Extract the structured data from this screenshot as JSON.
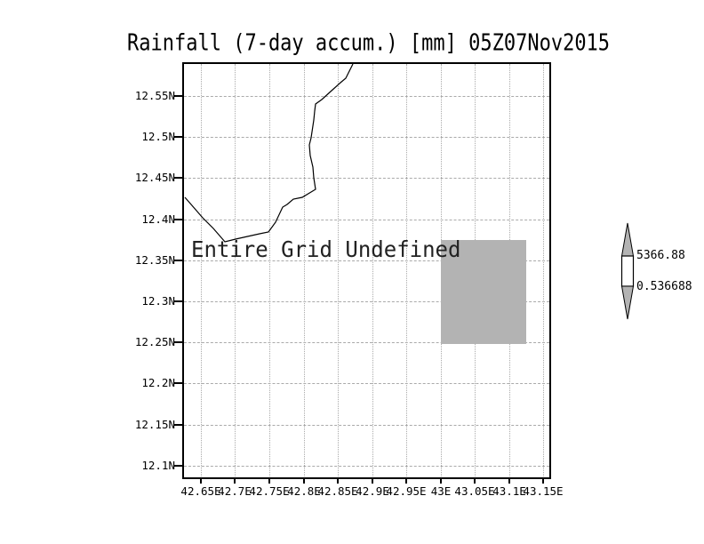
{
  "title": "Rainfall (7-day accum.) [mm] 05Z07Nov2015",
  "plot": {
    "status_text": "Entire Grid Undefined",
    "grid_color": "#aaaaaa",
    "frame_color": "#000000",
    "shaded_cell_color": "#b3b3b3",
    "coastline_color": "#000000"
  },
  "axes": {
    "y_tick_labels": [
      "12.55N",
      "12.5N",
      "12.45N",
      "12.4N",
      "12.35N",
      "12.3N",
      "12.25N",
      "12.2N",
      "12.15N",
      "12.1N"
    ],
    "x_tick_labels": [
      "42.65E",
      "42.7E",
      "42.75E",
      "42.8E",
      "42.85E",
      "42.9E",
      "42.95E",
      "43E",
      "43.05E",
      "43.1E",
      "43.15E"
    ]
  },
  "colorbar": {
    "max_label": "5366.88",
    "min_label": "0.536688",
    "arrow_color": "#b3b3b3",
    "box_color": "#ffffff"
  },
  "map": {
    "coastline_points": [
      [
        190,
        0
      ],
      [
        186,
        8
      ],
      [
        182,
        16
      ],
      [
        176,
        21
      ],
      [
        166,
        30
      ],
      [
        155,
        40
      ],
      [
        148,
        45
      ],
      [
        147,
        53
      ],
      [
        146,
        63
      ],
      [
        143,
        83
      ],
      [
        141,
        91
      ],
      [
        142,
        103
      ],
      [
        145,
        116
      ],
      [
        146,
        128
      ],
      [
        148,
        141
      ],
      [
        133,
        150
      ],
      [
        123,
        152
      ],
      [
        116,
        158
      ],
      [
        111,
        161
      ],
      [
        103,
        178
      ],
      [
        95,
        189
      ],
      [
        85,
        191
      ],
      [
        58,
        197
      ],
      [
        46,
        200
      ],
      [
        33,
        185
      ],
      [
        21,
        173
      ],
      [
        8,
        158
      ],
      [
        1,
        150
      ]
    ]
  },
  "chart_data": {
    "type": "heatmap",
    "title": "Rainfall (7-day accum.) [mm] 05Z07Nov2015",
    "x_tick_labels": [
      "42.65E",
      "42.7E",
      "42.75E",
      "42.8E",
      "42.85E",
      "42.9E",
      "42.95E",
      "43E",
      "43.05E",
      "43.1E",
      "43.15E"
    ],
    "y_tick_labels": [
      "12.55N",
      "12.5N",
      "12.45N",
      "12.4N",
      "12.35N",
      "12.3N",
      "12.25N",
      "12.2N",
      "12.15N",
      "12.1N"
    ],
    "grid": true,
    "annotation": "Entire Grid Undefined",
    "legend_position": "right",
    "colorbar": {
      "max": 5366.88,
      "min": 0.536688
    },
    "shaded_cells": [
      {
        "lon_min": 43.0,
        "lon_max": 43.13,
        "lat_min": 12.25,
        "lat_max": 12.375,
        "color": "#b3b3b3"
      }
    ]
  }
}
